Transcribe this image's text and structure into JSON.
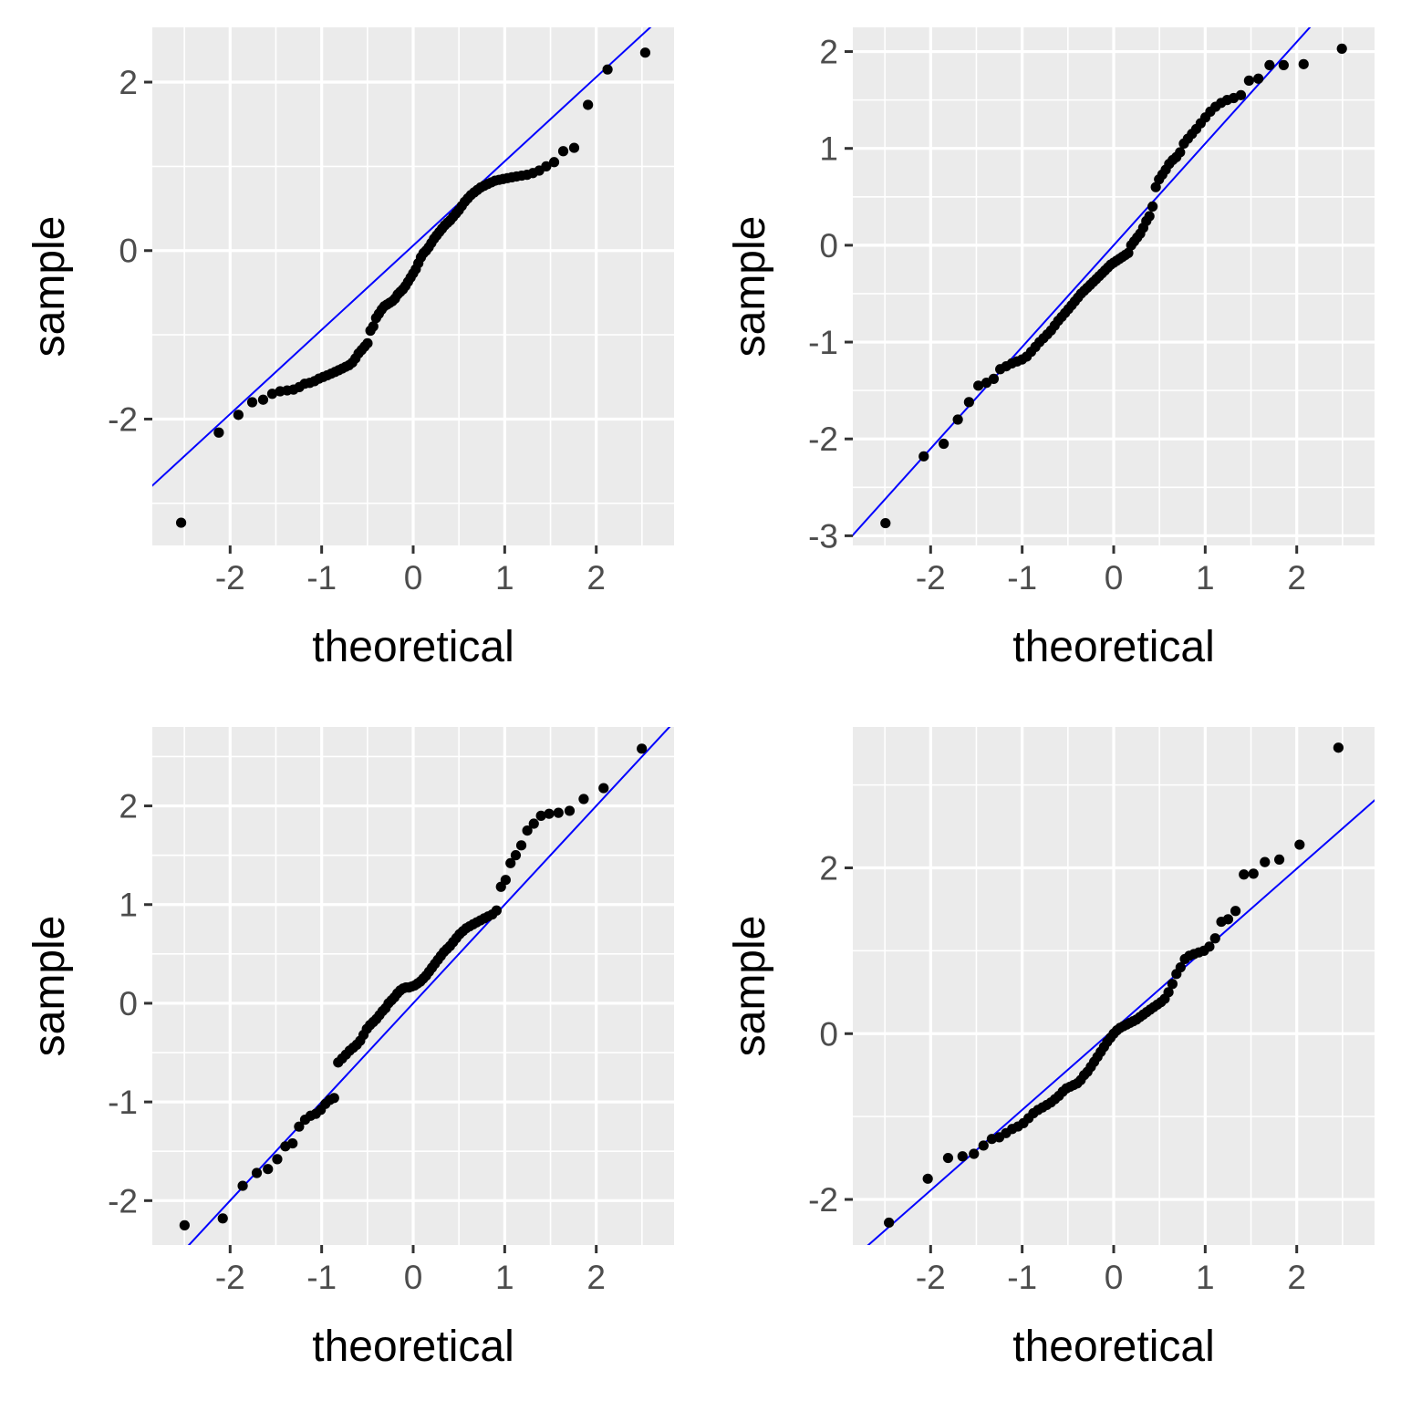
{
  "chart_data": [
    {
      "type": "scatter",
      "xlabel": "theoretical",
      "ylabel": "sample",
      "xlim": [
        -2.85,
        2.85
      ],
      "ylim": [
        -3.5,
        2.65
      ],
      "xticks": [
        -2,
        -1,
        0,
        1,
        2
      ],
      "xtick_labels": [
        "-2",
        "-1",
        "0",
        "1",
        "2"
      ],
      "yticks": [
        -2,
        0,
        2
      ],
      "ytick_labels": [
        "-2",
        "0",
        "2"
      ],
      "grid": true,
      "reference_line": {
        "color": "#0000ff",
        "intercept": 0.06,
        "slope": 1.0
      },
      "sample": [
        -3.23,
        -2.16,
        -1.95,
        -1.8,
        -1.77,
        -1.7,
        -1.67,
        -1.66,
        -1.65,
        -1.62,
        -1.58,
        -1.57,
        -1.55,
        -1.52,
        -1.5,
        -1.48,
        -1.46,
        -1.44,
        -1.42,
        -1.4,
        -1.38,
        -1.36,
        -1.33,
        -1.28,
        -1.22,
        -1.18,
        -1.14,
        -1.1,
        -0.95,
        -0.9,
        -0.8,
        -0.75,
        -0.7,
        -0.66,
        -0.64,
        -0.62,
        -0.6,
        -0.57,
        -0.52,
        -0.49,
        -0.46,
        -0.42,
        -0.37,
        -0.32,
        -0.27,
        -0.22,
        -0.15,
        -0.08,
        -0.03,
        0.0,
        0.04,
        0.09,
        0.14,
        0.18,
        0.22,
        0.26,
        0.3,
        0.33,
        0.36,
        0.4,
        0.44,
        0.48,
        0.53,
        0.58,
        0.62,
        0.66,
        0.69,
        0.72,
        0.75,
        0.77,
        0.79,
        0.81,
        0.83,
        0.84,
        0.85,
        0.86,
        0.87,
        0.88,
        0.89,
        0.9,
        0.92,
        0.95,
        1.0,
        1.05,
        1.18,
        1.22,
        1.73,
        2.15,
        2.35
      ]
    },
    {
      "type": "scatter",
      "xlabel": "theoretical",
      "ylabel": "sample",
      "xlim": [
        -2.85,
        2.85
      ],
      "ylim": [
        -3.1,
        2.25
      ],
      "xticks": [
        -2,
        -1,
        0,
        1,
        2
      ],
      "xtick_labels": [
        "-2",
        "-1",
        "0",
        "1",
        "2"
      ],
      "yticks": [
        -3,
        -2,
        -1,
        0,
        1,
        2
      ],
      "ytick_labels": [
        "-3",
        "-2",
        "-1",
        "0",
        "1",
        "2"
      ],
      "grid": true,
      "reference_line": {
        "color": "#0000ff",
        "intercept": 0.0,
        "slope": 1.05
      },
      "sample": [
        -2.87,
        -2.18,
        -2.05,
        -1.8,
        -1.62,
        -1.45,
        -1.42,
        -1.38,
        -1.28,
        -1.25,
        -1.22,
        -1.2,
        -1.18,
        -1.15,
        -1.1,
        -1.05,
        -1.0,
        -0.96,
        -0.92,
        -0.88,
        -0.83,
        -0.78,
        -0.74,
        -0.7,
        -0.66,
        -0.62,
        -0.58,
        -0.54,
        -0.5,
        -0.47,
        -0.44,
        -0.41,
        -0.38,
        -0.35,
        -0.32,
        -0.29,
        -0.26,
        -0.23,
        -0.2,
        -0.18,
        -0.16,
        -0.14,
        -0.12,
        -0.1,
        -0.08,
        0.0,
        0.04,
        0.08,
        0.12,
        0.18,
        0.25,
        0.3,
        0.4,
        0.6,
        0.68,
        0.73,
        0.78,
        0.84,
        0.88,
        0.91,
        0.96,
        1.05,
        1.1,
        1.15,
        1.2,
        1.26,
        1.32,
        1.38,
        1.43,
        1.47,
        1.5,
        1.52,
        1.55,
        1.7,
        1.72,
        1.86,
        1.86,
        1.87,
        2.03
      ]
    },
    {
      "type": "scatter",
      "xlabel": "theoretical",
      "ylabel": "sample",
      "xlim": [
        -2.85,
        2.85
      ],
      "ylim": [
        -2.45,
        2.8
      ],
      "xticks": [
        -2,
        -1,
        0,
        1,
        2
      ],
      "xtick_labels": [
        "-2",
        "-1",
        "0",
        "1",
        "2"
      ],
      "yticks": [
        -2,
        -1,
        0,
        1,
        2
      ],
      "ytick_labels": [
        "-2",
        "-1",
        "0",
        "1",
        "2"
      ],
      "grid": true,
      "reference_line": {
        "color": "#0000ff",
        "intercept": 0.0,
        "slope": 1.0
      },
      "sample": [
        -2.25,
        -2.18,
        -1.85,
        -1.72,
        -1.68,
        -1.58,
        -1.45,
        -1.42,
        -1.25,
        -1.18,
        -1.14,
        -1.12,
        -1.08,
        -1.02,
        -0.98,
        -0.96,
        -0.6,
        -0.56,
        -0.52,
        -0.48,
        -0.45,
        -0.42,
        -0.38,
        -0.32,
        -0.26,
        -0.22,
        -0.19,
        -0.16,
        -0.12,
        -0.08,
        -0.05,
        0.0,
        0.03,
        0.06,
        0.1,
        0.13,
        0.15,
        0.16,
        0.16,
        0.17,
        0.18,
        0.2,
        0.22,
        0.25,
        0.28,
        0.32,
        0.36,
        0.4,
        0.44,
        0.48,
        0.52,
        0.55,
        0.58,
        0.62,
        0.66,
        0.7,
        0.73,
        0.76,
        0.78,
        0.8,
        0.82,
        0.84,
        0.86,
        0.88,
        0.9,
        0.94,
        1.18,
        1.25,
        1.42,
        1.5,
        1.6,
        1.75,
        1.82,
        1.9,
        1.92,
        1.93,
        1.95,
        2.07,
        2.18,
        2.58
      ]
    },
    {
      "type": "scatter",
      "xlabel": "theoretical",
      "ylabel": "sample",
      "xlim": [
        -2.85,
        2.85
      ],
      "ylim": [
        -2.55,
        3.7
      ],
      "xticks": [
        -2,
        -1,
        0,
        1,
        2
      ],
      "xtick_labels": [
        "-2",
        "-1",
        "0",
        "1",
        "2"
      ],
      "yticks": [
        -2,
        0,
        2
      ],
      "ytick_labels": [
        "-2",
        "0",
        "2"
      ],
      "grid": true,
      "reference_line": {
        "color": "#0000ff",
        "intercept": 0.05,
        "slope": 0.97
      },
      "sample": [
        -2.28,
        -1.75,
        -1.5,
        -1.48,
        -1.45,
        -1.35,
        -1.27,
        -1.25,
        -1.2,
        -1.15,
        -1.12,
        -1.08,
        -1.02,
        -0.96,
        -0.92,
        -0.89,
        -0.86,
        -0.83,
        -0.79,
        -0.75,
        -0.7,
        -0.66,
        -0.64,
        -0.62,
        -0.6,
        -0.56,
        -0.5,
        -0.46,
        -0.4,
        -0.34,
        -0.28,
        -0.22,
        -0.16,
        -0.1,
        -0.05,
        0.0,
        0.04,
        0.07,
        0.09,
        0.11,
        0.13,
        0.15,
        0.17,
        0.2,
        0.23,
        0.26,
        0.29,
        0.32,
        0.35,
        0.38,
        0.42,
        0.5,
        0.6,
        0.72,
        0.8,
        0.9,
        0.94,
        0.96,
        0.98,
        1.0,
        1.05,
        1.15,
        1.35,
        1.38,
        1.48,
        1.92,
        1.93,
        2.07,
        2.1,
        2.28,
        3.45
      ]
    }
  ]
}
